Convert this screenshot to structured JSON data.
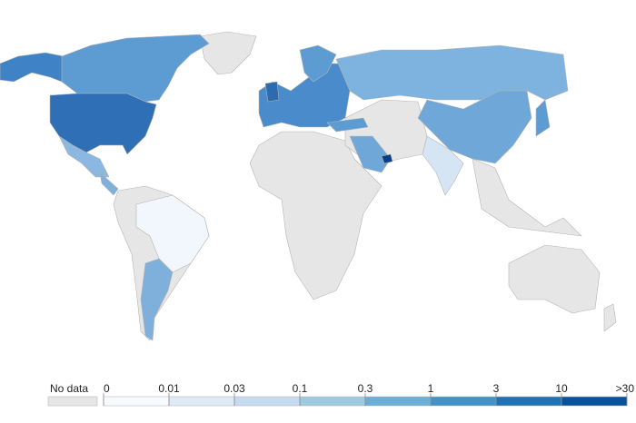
{
  "legend": {
    "no_data_label": "No data",
    "no_data_color": "#e6e6e6",
    "ticks": [
      "0",
      "0.01",
      "0.03",
      "0.1",
      "0.3",
      "1",
      "3",
      "10",
      ">30"
    ],
    "colors": [
      "#f7fbff",
      "#deebf7",
      "#c6dbef",
      "#9ecae1",
      "#6baed6",
      "#4292c6",
      "#2171b5",
      "#08519c"
    ]
  }
}
